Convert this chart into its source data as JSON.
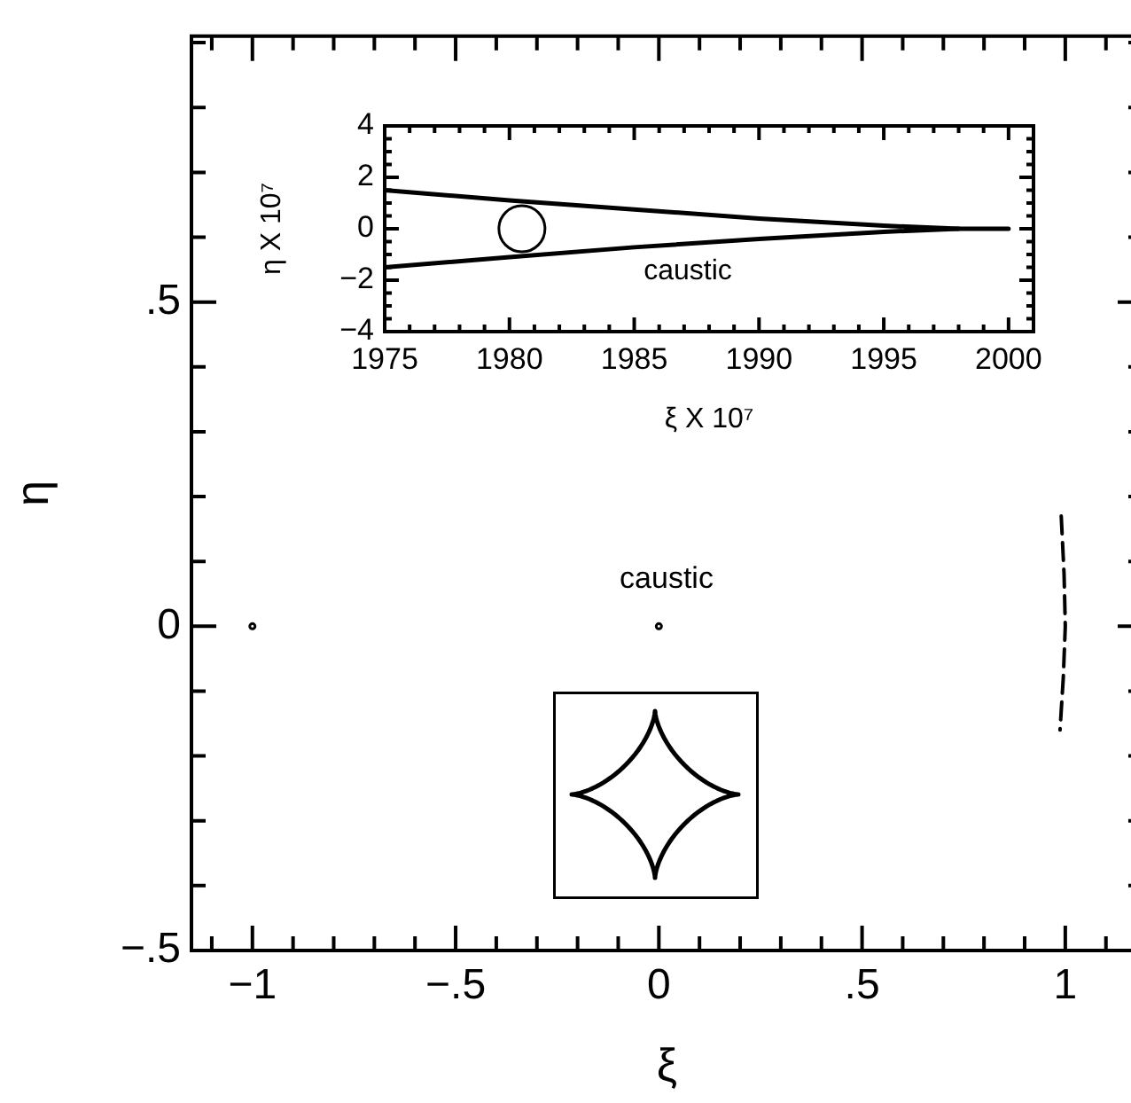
{
  "chart_data": [
    {
      "type": "line",
      "xlabel": "ξ",
      "ylabel": "η",
      "xlim": [
        -1.15,
        1.19
      ],
      "ylim": [
        -0.5,
        0.91
      ],
      "xticks": [
        {
          "value": -1.1,
          "label": null
        },
        {
          "value": -1,
          "label": "−1"
        },
        {
          "value": -0.9,
          "label": null
        },
        {
          "value": -0.8,
          "label": null
        },
        {
          "value": -0.7,
          "label": null
        },
        {
          "value": -0.6,
          "label": null
        },
        {
          "value": -0.5,
          "label": "−.5"
        },
        {
          "value": -0.4,
          "label": null
        },
        {
          "value": -0.3,
          "label": null
        },
        {
          "value": -0.2,
          "label": null
        },
        {
          "value": -0.1,
          "label": null
        },
        0,
        {
          "value": 0.1,
          "label": null
        },
        {
          "value": 0.2,
          "label": null
        },
        {
          "value": 0.3,
          "label": null
        },
        {
          "value": 0.4,
          "label": null
        },
        {
          "value": 0.5,
          "label": ".5"
        },
        {
          "value": 0.6,
          "label": null
        },
        {
          "value": 0.7,
          "label": null
        },
        {
          "value": 0.8,
          "label": null
        },
        {
          "value": 0.9,
          "label": null
        },
        1,
        {
          "value": 1.1,
          "label": null
        }
      ],
      "yticks": [
        {
          "value": -0.5,
          "label": "−.5"
        },
        {
          "value": -0.4,
          "label": null
        },
        {
          "value": -0.3,
          "label": null
        },
        {
          "value": -0.2,
          "label": null
        },
        {
          "value": -0.1,
          "label": null
        },
        0,
        {
          "value": 0.1,
          "label": null
        },
        {
          "value": 0.2,
          "label": null
        },
        {
          "value": 0.3,
          "label": null
        },
        {
          "value": 0.4,
          "label": null
        },
        {
          "value": 0.5,
          "label": ".5"
        },
        {
          "value": 0.6,
          "label": null
        },
        {
          "value": 0.7,
          "label": null
        },
        {
          "value": 0.8,
          "label": null
        },
        {
          "value": 0.9,
          "label": null
        }
      ],
      "series": [
        {
          "type": "scatter",
          "color": "#000000",
          "marker": "circle",
          "x": [
            -1,
            0
          ],
          "values": [
            0,
            0
          ]
        },
        {
          "color": "#000000",
          "line_style": "dashed",
          "x": [
            0.99,
            0.997,
            1.0,
            0.995,
            0.987
          ],
          "values": [
            0.17,
            0.08,
            0,
            -0.08,
            -0.16
          ]
        }
      ],
      "annotations": [
        "caustic"
      ],
      "legend": false,
      "grid": false
    },
    {
      "type": "line",
      "xlabel": "ξ X 10⁷",
      "ylabel": "η X 10⁷",
      "xlim": [
        1975,
        2001
      ],
      "ylim": [
        -4,
        4
      ],
      "xticks": [
        1975,
        {
          "value": 1976,
          "label": null
        },
        {
          "value": 1977,
          "label": null
        },
        {
          "value": 1978,
          "label": null
        },
        {
          "value": 1979,
          "label": null
        },
        1980,
        {
          "value": 1981,
          "label": null
        },
        {
          "value": 1982,
          "label": null
        },
        {
          "value": 1983,
          "label": null
        },
        {
          "value": 1984,
          "label": null
        },
        1985,
        {
          "value": 1986,
          "label": null
        },
        {
          "value": 1987,
          "label": null
        },
        {
          "value": 1988,
          "label": null
        },
        {
          "value": 1989,
          "label": null
        },
        1990,
        {
          "value": 1991,
          "label": null
        },
        {
          "value": 1992,
          "label": null
        },
        {
          "value": 1993,
          "label": null
        },
        {
          "value": 1994,
          "label": null
        },
        1995,
        {
          "value": 1996,
          "label": null
        },
        {
          "value": 1997,
          "label": null
        },
        {
          "value": 1998,
          "label": null
        },
        {
          "value": 1999,
          "label": null
        },
        2000
      ],
      "yticks": [
        {
          "value": -4,
          "label": "−4"
        },
        {
          "value": -3.5,
          "label": null
        },
        {
          "value": -3,
          "label": null
        },
        {
          "value": -2.5,
          "label": null
        },
        {
          "value": -2,
          "label": "−2"
        },
        {
          "value": -1.5,
          "label": null
        },
        {
          "value": -1,
          "label": null
        },
        {
          "value": -0.5,
          "label": null
        },
        0,
        {
          "value": 0.5,
          "label": null
        },
        {
          "value": 1,
          "label": null
        },
        {
          "value": 1.5,
          "label": null
        },
        2,
        {
          "value": 2.5,
          "label": null
        },
        {
          "value": 3,
          "label": null
        },
        {
          "value": 3.5,
          "label": null
        },
        4
      ],
      "series": [
        {
          "color": "#000000",
          "x": [
            1975,
            1980,
            1985,
            1990,
            1995,
            1998,
            2000
          ],
          "values": [
            1.5,
            1.1,
            0.75,
            0.4,
            0.12,
            0,
            0
          ]
        },
        {
          "color": "#000000",
          "x": [
            1975,
            1980,
            1985,
            1990,
            1995,
            1998
          ],
          "values": [
            -1.5,
            -1.1,
            -0.72,
            -0.4,
            -0.12,
            0
          ]
        },
        {
          "type": "scatter",
          "color": "#000000",
          "marker": "circle",
          "x": [
            1980.5
          ],
          "values": [
            0
          ]
        }
      ],
      "annotations": [
        "caustic"
      ],
      "legend": false,
      "grid": false
    }
  ]
}
